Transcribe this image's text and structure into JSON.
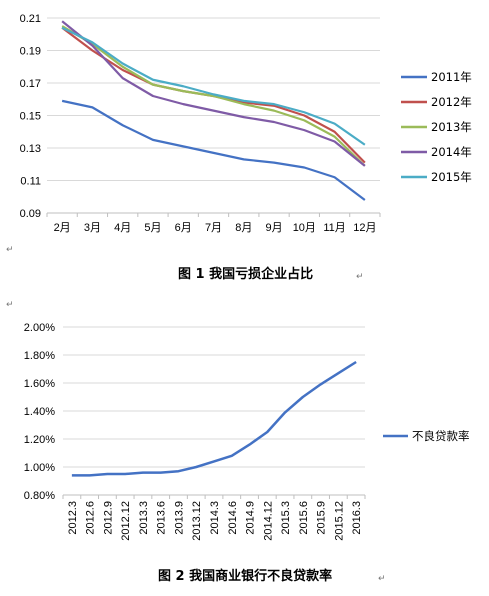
{
  "chart_data": [
    {
      "type": "line",
      "categories": [
        "2月",
        "3月",
        "4月",
        "5月",
        "6月",
        "7月",
        "8月",
        "9月",
        "10月",
        "11月",
        "12月"
      ],
      "ylim": [
        0.09,
        0.21
      ],
      "yticks": [
        "0.21",
        "0.19",
        "0.17",
        "0.15",
        "0.13",
        "0.11",
        "0.09"
      ],
      "grid": true,
      "legend": "right",
      "series": [
        {
          "name": "2011年",
          "color": "#4472C4",
          "values": [
            0.159,
            0.155,
            0.144,
            0.135,
            0.131,
            0.127,
            0.123,
            0.121,
            0.118,
            0.112,
            0.098
          ]
        },
        {
          "name": "2012年",
          "color": "#C0504D",
          "values": [
            0.204,
            0.19,
            0.178,
            0.169,
            0.165,
            0.162,
            0.158,
            0.156,
            0.15,
            0.14,
            0.121
          ]
        },
        {
          "name": "2013年",
          "color": "#9BBB59",
          "values": [
            0.205,
            0.194,
            0.18,
            0.169,
            0.165,
            0.162,
            0.157,
            0.153,
            0.147,
            0.137,
            0.119
          ]
        },
        {
          "name": "2014年",
          "color": "#7F5BA6",
          "values": [
            0.208,
            0.193,
            0.173,
            0.162,
            0.157,
            0.153,
            0.149,
            0.146,
            0.141,
            0.134,
            0.119
          ]
        },
        {
          "name": "2015年",
          "color": "#4BACC6",
          "values": [
            0.204,
            0.195,
            0.182,
            0.172,
            0.168,
            0.163,
            0.159,
            0.157,
            0.152,
            0.145,
            0.132
          ]
        }
      ],
      "caption": "图 1  我国亏损企业占比"
    },
    {
      "type": "line",
      "categories": [
        "2012.3",
        "2012.6",
        "2012.9",
        "2012.12",
        "2013.3",
        "2013.6",
        "2013.9",
        "2013.12",
        "2014.3",
        "2014.6",
        "2014.9",
        "2014.12",
        "2015.3",
        "2015.6",
        "2015.9",
        "2015.12",
        "2016.3"
      ],
      "ylim": [
        0.8,
        2.0
      ],
      "yticks": [
        "2.00%",
        "1.80%",
        "1.60%",
        "1.40%",
        "1.20%",
        "1.00%",
        "0.80%"
      ],
      "grid": true,
      "legend": "right",
      "series": [
        {
          "name": "不良贷款率",
          "color": "#4472C4",
          "values": [
            0.94,
            0.94,
            0.95,
            0.95,
            0.96,
            0.96,
            0.97,
            1.0,
            1.04,
            1.08,
            1.16,
            1.25,
            1.39,
            1.5,
            1.59,
            1.67,
            1.75
          ]
        }
      ],
      "caption": "图 2  我国商业银行不良贷款率"
    }
  ],
  "return_mark": "↵",
  "left_mark": "↵"
}
